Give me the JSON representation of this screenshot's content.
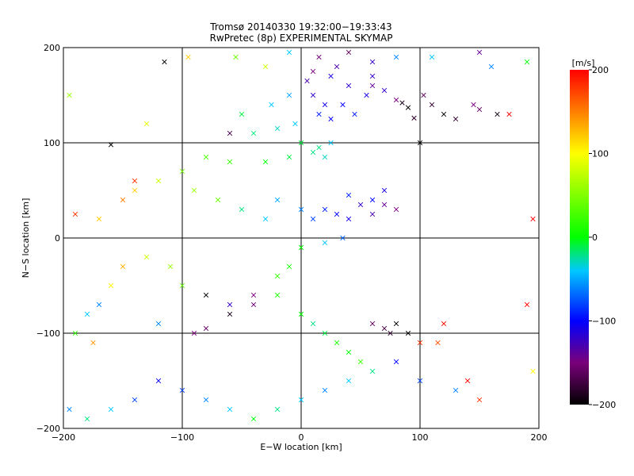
{
  "chart_data": {
    "type": "scatter",
    "title": "Tromsø 20140330 19:32:00−19:33:43",
    "subtitle": "RwPretec (8p) EXPERIMENTAL SKYMAP",
    "xlabel": "E−W location [km]",
    "ylabel": "N−S location [km]",
    "xlim": [
      -200,
      200
    ],
    "ylim": [
      -200,
      200
    ],
    "xticks": [
      -200,
      -100,
      0,
      100,
      200
    ],
    "yticks": [
      -200,
      -100,
      0,
      100,
      200
    ],
    "xtick_labels": [
      "−200",
      "−100",
      "0",
      "100",
      "200"
    ],
    "ytick_labels": [
      "−200",
      "−100",
      "0",
      "100",
      "200"
    ],
    "grid": true,
    "marker_types": [
      "dot",
      "x"
    ],
    "colorbar": {
      "label": "[m/s]",
      "range": [
        -200,
        200
      ],
      "ticks": [
        200,
        100,
        0,
        -100,
        -200
      ],
      "tick_labels": [
        "200",
        "100",
        "0",
        "−100",
        "−200"
      ],
      "colormap": [
        "#000000",
        "#7a007a",
        "#0000ff",
        "#00c8ff",
        "#00ff00",
        "#ffff00",
        "#ff7f00",
        "#ff0000"
      ]
    },
    "series": [
      {
        "points": [
          [
            -160,
            98,
            -200,
            "x"
          ],
          [
            -115,
            185,
            -200,
            "x"
          ],
          [
            -60,
            110,
            -170,
            "x"
          ],
          [
            100,
            100,
            -200,
            "x"
          ],
          [
            103,
            150,
            -160,
            "x"
          ],
          [
            110,
            140,
            -180,
            "x"
          ],
          [
            120,
            130,
            -200,
            "x"
          ],
          [
            130,
            125,
            -180,
            "x"
          ],
          [
            145,
            140,
            -150,
            "x"
          ],
          [
            150,
            135,
            -160,
            "x"
          ],
          [
            165,
            130,
            -190,
            "x"
          ],
          [
            90,
            137,
            -200,
            "x"
          ],
          [
            95,
            126,
            -180,
            "x"
          ],
          [
            85,
            142,
            -190,
            "x"
          ],
          [
            55,
            150,
            -110,
            "x"
          ],
          [
            60,
            160,
            -140,
            "x"
          ],
          [
            70,
            155,
            -120,
            "x"
          ],
          [
            80,
            145,
            -150,
            "x"
          ],
          [
            40,
            160,
            -120,
            "x"
          ],
          [
            25,
            170,
            -110,
            "x"
          ],
          [
            15,
            190,
            -150,
            "x"
          ],
          [
            30,
            180,
            -130,
            "x"
          ],
          [
            10,
            150,
            -120,
            "x"
          ],
          [
            20,
            140,
            -110,
            "x"
          ],
          [
            5,
            165,
            -130,
            "x"
          ],
          [
            35,
            140,
            -100,
            "x"
          ],
          [
            45,
            130,
            -90,
            "x"
          ],
          [
            25,
            125,
            -100,
            "x"
          ],
          [
            15,
            130,
            -90,
            "x"
          ],
          [
            -5,
            120,
            -40,
            "x"
          ],
          [
            -20,
            115,
            -30,
            "x"
          ],
          [
            -40,
            110,
            -20,
            "x"
          ],
          [
            -50,
            130,
            -10,
            "x"
          ],
          [
            -25,
            140,
            -40,
            "x"
          ],
          [
            -10,
            150,
            -50,
            "x"
          ],
          [
            0,
            100,
            -10,
            "x"
          ],
          [
            10,
            90,
            -20,
            "x"
          ],
          [
            20,
            85,
            -30,
            "x"
          ],
          [
            15,
            95,
            -20,
            "x"
          ],
          [
            25,
            100,
            -40,
            "x"
          ],
          [
            -10,
            85,
            -10,
            "x"
          ],
          [
            -30,
            80,
            0,
            "x"
          ],
          [
            -60,
            80,
            20,
            "x"
          ],
          [
            -80,
            85,
            30,
            "x"
          ],
          [
            -100,
            70,
            50,
            "x"
          ],
          [
            -120,
            60,
            80,
            "x"
          ],
          [
            -140,
            50,
            120,
            "x"
          ],
          [
            -150,
            40,
            150,
            "x"
          ],
          [
            -170,
            20,
            120,
            "x"
          ],
          [
            -190,
            25,
            180,
            "x"
          ],
          [
            -195,
            150,
            60,
            "x"
          ],
          [
            -130,
            120,
            90,
            "x"
          ],
          [
            -140,
            60,
            180,
            "x"
          ],
          [
            -90,
            50,
            60,
            "x"
          ],
          [
            -70,
            40,
            40,
            "x"
          ],
          [
            -50,
            30,
            -20,
            "x"
          ],
          [
            -30,
            20,
            -40,
            "x"
          ],
          [
            -20,
            40,
            -50,
            "x"
          ],
          [
            0,
            30,
            -60,
            "x"
          ],
          [
            10,
            20,
            -80,
            "x"
          ],
          [
            20,
            30,
            -90,
            "x"
          ],
          [
            30,
            25,
            -100,
            "x"
          ],
          [
            40,
            20,
            -110,
            "x"
          ],
          [
            50,
            35,
            -120,
            "x"
          ],
          [
            60,
            25,
            -130,
            "x"
          ],
          [
            70,
            35,
            -140,
            "x"
          ],
          [
            80,
            30,
            -150,
            "x"
          ],
          [
            70,
            50,
            -110,
            "x"
          ],
          [
            60,
            40,
            -100,
            "x"
          ],
          [
            40,
            45,
            -90,
            "x"
          ],
          [
            35,
            0,
            -70,
            "x"
          ],
          [
            20,
            -5,
            -40,
            "x"
          ],
          [
            0,
            -10,
            0,
            "x"
          ],
          [
            -10,
            -30,
            10,
            "x"
          ],
          [
            -20,
            -40,
            20,
            "x"
          ],
          [
            -40,
            -60,
            -150,
            "x"
          ],
          [
            -60,
            -70,
            -120,
            "x"
          ],
          [
            -80,
            -60,
            -200,
            "x"
          ],
          [
            -100,
            -50,
            40,
            "x"
          ],
          [
            -110,
            -30,
            60,
            "x"
          ],
          [
            -130,
            -20,
            80,
            "x"
          ],
          [
            -150,
            -30,
            130,
            "x"
          ],
          [
            -160,
            -50,
            100,
            "x"
          ],
          [
            -170,
            -70,
            -60,
            "x"
          ],
          [
            -180,
            -80,
            -40,
            "x"
          ],
          [
            -190,
            -100,
            20,
            "x"
          ],
          [
            -175,
            -110,
            140,
            "x"
          ],
          [
            -120,
            -90,
            -60,
            "x"
          ],
          [
            -90,
            -100,
            -150,
            "x"
          ],
          [
            -80,
            -95,
            -160,
            "x"
          ],
          [
            -60,
            -80,
            -190,
            "x"
          ],
          [
            -40,
            -70,
            -150,
            "x"
          ],
          [
            -20,
            -60,
            10,
            "x"
          ],
          [
            0,
            -80,
            0,
            "x"
          ],
          [
            10,
            -90,
            -20,
            "x"
          ],
          [
            20,
            -100,
            -10,
            "x"
          ],
          [
            30,
            -110,
            10,
            "x"
          ],
          [
            40,
            -120,
            0,
            "x"
          ],
          [
            50,
            -130,
            20,
            "x"
          ],
          [
            60,
            -90,
            -160,
            "x"
          ],
          [
            70,
            -95,
            -170,
            "x"
          ],
          [
            75,
            -100,
            -180,
            "x"
          ],
          [
            80,
            -90,
            -200,
            "x"
          ],
          [
            90,
            -100,
            -200,
            "x"
          ],
          [
            100,
            -110,
            180,
            "x"
          ],
          [
            115,
            -110,
            170,
            "x"
          ],
          [
            120,
            -90,
            200,
            "x"
          ],
          [
            140,
            -150,
            200,
            "x"
          ],
          [
            150,
            -170,
            180,
            "x"
          ],
          [
            130,
            -160,
            -60,
            "x"
          ],
          [
            100,
            -150,
            -80,
            "x"
          ],
          [
            80,
            -130,
            -100,
            "x"
          ],
          [
            60,
            -140,
            -20,
            "x"
          ],
          [
            40,
            -150,
            -40,
            "x"
          ],
          [
            20,
            -160,
            -60,
            "x"
          ],
          [
            0,
            -170,
            -40,
            "x"
          ],
          [
            -20,
            -180,
            -20,
            "x"
          ],
          [
            -40,
            -190,
            0,
            "x"
          ],
          [
            -60,
            -180,
            -40,
            "x"
          ],
          [
            -80,
            -170,
            -60,
            "x"
          ],
          [
            -100,
            -160,
            -80,
            "x"
          ],
          [
            -120,
            -150,
            -100,
            "x"
          ],
          [
            -140,
            -170,
            -80,
            "x"
          ],
          [
            -160,
            -180,
            -40,
            "x"
          ],
          [
            -180,
            -190,
            -20,
            "x"
          ],
          [
            -195,
            -180,
            -60,
            "x"
          ],
          [
            195,
            -140,
            100,
            "x"
          ],
          [
            190,
            -70,
            200,
            "x"
          ],
          [
            195,
            20,
            200,
            "x"
          ],
          [
            175,
            130,
            200,
            "x"
          ],
          [
            190,
            185,
            0,
            "x"
          ],
          [
            60,
            170,
            -120,
            "x"
          ],
          [
            -95,
            190,
            120,
            "x"
          ],
          [
            -55,
            190,
            40,
            "x"
          ],
          [
            -30,
            180,
            80,
            "x"
          ],
          [
            -10,
            195,
            -40,
            "x"
          ],
          [
            10,
            175,
            -150,
            "x"
          ],
          [
            40,
            195,
            -160,
            "x"
          ],
          [
            60,
            185,
            -120,
            "x"
          ],
          [
            80,
            190,
            -60,
            "x"
          ],
          [
            110,
            190,
            -40,
            "x"
          ],
          [
            150,
            195,
            -140,
            "x"
          ],
          [
            160,
            180,
            -60,
            "x"
          ]
        ]
      }
    ]
  }
}
